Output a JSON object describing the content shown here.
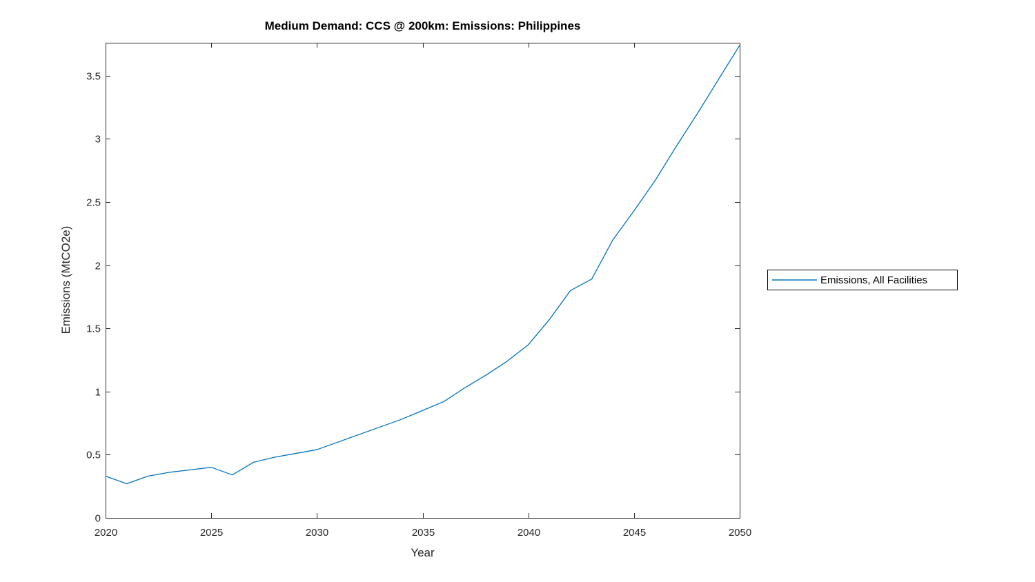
{
  "chart_data": {
    "type": "line",
    "title": "Medium Demand: CCS @ 200km: Emissions: Philippines",
    "xlabel": "Year",
    "ylabel": "Emissions (MtCO2e)",
    "legend": [
      "Emissions, All Facilities"
    ],
    "legend_position": "outside-right",
    "grid": false,
    "box": true,
    "tick_direction": "in",
    "background_color": "#FFFFFF",
    "axes_color": "#262626",
    "xlim": [
      2020,
      2050
    ],
    "ylim": [
      0,
      3.76
    ],
    "xticks": [
      2020,
      2025,
      2030,
      2035,
      2040,
      2045,
      2050
    ],
    "yticks": [
      0,
      0.5,
      1,
      1.5,
      2,
      2.5,
      3,
      3.5
    ],
    "series": [
      {
        "name": "Emissions, All Facilities",
        "color": "#0072BD",
        "x": [
          2020,
          2021,
          2022,
          2023,
          2024,
          2025,
          2026,
          2027,
          2028,
          2029,
          2030,
          2031,
          2032,
          2033,
          2034,
          2035,
          2036,
          2037,
          2038,
          2039,
          2040,
          2041,
          2042,
          2043,
          2044,
          2045,
          2046,
          2047,
          2048,
          2049,
          2050
        ],
        "y": [
          0.33,
          0.27,
          0.33,
          0.36,
          0.38,
          0.4,
          0.34,
          0.44,
          0.48,
          0.51,
          0.54,
          0.6,
          0.66,
          0.72,
          0.78,
          0.85,
          0.92,
          1.03,
          1.13,
          1.24,
          1.37,
          1.57,
          1.8,
          1.89,
          2.2,
          2.43,
          2.67,
          2.94,
          3.2,
          3.47,
          3.74
        ]
      }
    ]
  }
}
